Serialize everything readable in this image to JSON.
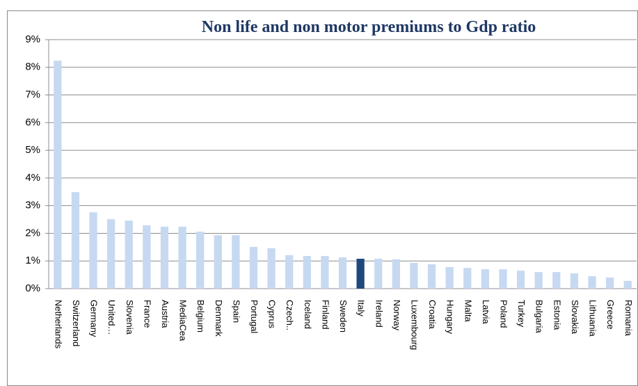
{
  "chart_data": {
    "type": "bar",
    "title": "Non life and non motor premiums to Gdp ratio",
    "categories": [
      "Netherlands",
      "Switzerland",
      "Germany",
      "United…",
      "Slovenia",
      "France",
      "Austria",
      "MediaCea",
      "Belgium",
      "Denmark",
      "Spain",
      "Portugal",
      "Cyprus",
      "Czech..",
      "Iceland",
      "Finland",
      "Sweden",
      "Italy",
      "Ireland",
      "Norway",
      "Luxembourg",
      "Croatia",
      "Hungary",
      "Malta",
      "Latvia",
      "Poland",
      "Turkey",
      "Bulgaria",
      "Estonia",
      "Slovakia",
      "Lithuania",
      "Greece",
      "Romania"
    ],
    "values": [
      8.24,
      3.49,
      2.76,
      2.51,
      2.46,
      2.29,
      2.24,
      2.24,
      2.06,
      1.93,
      1.93,
      1.51,
      1.46,
      1.21,
      1.18,
      1.18,
      1.13,
      1.08,
      1.08,
      1.06,
      0.93,
      0.88,
      0.78,
      0.75,
      0.7,
      0.7,
      0.65,
      0.6,
      0.6,
      0.55,
      0.45,
      0.4,
      0.28
    ],
    "colors": [
      "#c6d9f1",
      "#c6d9f1",
      "#c6d9f1",
      "#c6d9f1",
      "#c6d9f1",
      "#c6d9f1",
      "#c6d9f1",
      "#c6d9f1",
      "#c6d9f1",
      "#c6d9f1",
      "#c6d9f1",
      "#c6d9f1",
      "#c6d9f1",
      "#c6d9f1",
      "#c6d9f1",
      "#c6d9f1",
      "#c6d9f1",
      "#1f497d",
      "#c6d9f1",
      "#c6d9f1",
      "#c6d9f1",
      "#c6d9f1",
      "#c6d9f1",
      "#c6d9f1",
      "#c6d9f1",
      "#c6d9f1",
      "#c6d9f1",
      "#c6d9f1",
      "#c6d9f1",
      "#c6d9f1",
      "#c6d9f1",
      "#c6d9f1",
      "#c6d9f1"
    ],
    "ylim": [
      0,
      9
    ],
    "yticks": [
      {
        "value": 0,
        "label": "0%"
      },
      {
        "value": 1,
        "label": "1%"
      },
      {
        "value": 2,
        "label": "2%"
      },
      {
        "value": 3,
        "label": "3%"
      },
      {
        "value": 4,
        "label": "4%"
      },
      {
        "value": 5,
        "label": "5%"
      },
      {
        "value": 6,
        "label": "6%"
      },
      {
        "value": 7,
        "label": "7%"
      },
      {
        "value": 8,
        "label": "8%"
      },
      {
        "value": 9,
        "label": "9%"
      }
    ],
    "grid": true
  }
}
